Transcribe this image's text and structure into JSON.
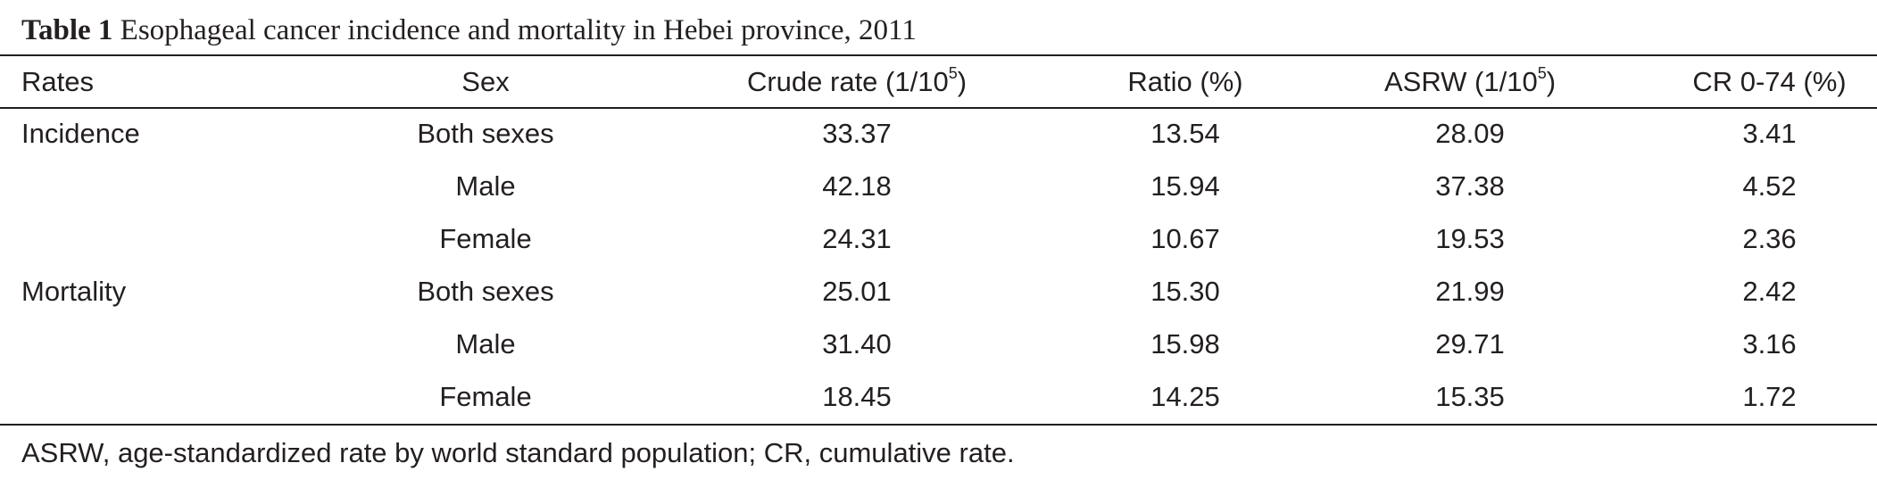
{
  "caption": {
    "label": "Table 1",
    "text": "Esophageal cancer incidence and mortality in Hebei province, 2011"
  },
  "table": {
    "headers": {
      "rates": "Rates",
      "sex": "Sex",
      "crude_rate_prefix": "Crude rate (1/10",
      "crude_rate_sup": "5",
      "crude_rate_suffix": ")",
      "ratio": "Ratio (%)",
      "asrw_prefix": "ASRW (1/10",
      "asrw_sup": "5",
      "asrw_suffix": ")",
      "cr": "CR 0-74 (%)"
    },
    "rows": [
      {
        "rate": "Incidence",
        "sex": "Both sexes",
        "crude": "33.37",
        "ratio": "13.54",
        "asrw": "28.09",
        "cr": "3.41"
      },
      {
        "rate": "",
        "sex": "Male",
        "crude": "42.18",
        "ratio": "15.94",
        "asrw": "37.38",
        "cr": "4.52"
      },
      {
        "rate": "",
        "sex": "Female",
        "crude": "24.31",
        "ratio": "10.67",
        "asrw": "19.53",
        "cr": "2.36"
      },
      {
        "rate": "Mortality",
        "sex": "Both sexes",
        "crude": "25.01",
        "ratio": "15.30",
        "asrw": "21.99",
        "cr": "2.42"
      },
      {
        "rate": "",
        "sex": "Male",
        "crude": "31.40",
        "ratio": "15.98",
        "asrw": "29.71",
        "cr": "3.16"
      },
      {
        "rate": "",
        "sex": "Female",
        "crude": "18.45",
        "ratio": "14.25",
        "asrw": "15.35",
        "cr": "1.72"
      }
    ]
  },
  "footnote": "ASRW, age-standardized rate by world standard population; CR, cumulative rate."
}
